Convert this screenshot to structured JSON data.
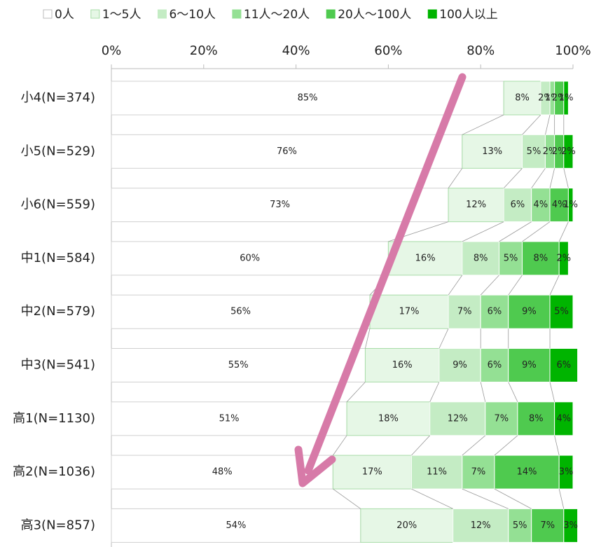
{
  "chart_data": {
    "type": "stacked-barh",
    "categories": [
      "小4(N=374)",
      "小5(N=529)",
      "小6(N=559)",
      "中1(N=584)",
      "中2(N=579)",
      "中3(N=541)",
      "高1(N=1130)",
      "高2(N=1036)",
      "高3(N=857)"
    ],
    "series": [
      {
        "name": "0人",
        "color": "#ffffff",
        "values": [
          85,
          76,
          73,
          60,
          56,
          55,
          51,
          48,
          54
        ],
        "value_labels": [
          "85%",
          "76%",
          "73%",
          "60%",
          "56%",
          "55%",
          "51%",
          "48%",
          "54%"
        ]
      },
      {
        "name": "1〜5人",
        "color": "#e6f7e6",
        "values": [
          8,
          13,
          12,
          16,
          17,
          16,
          18,
          17,
          20
        ],
        "value_labels": [
          "8%",
          "13%",
          "12%",
          "16%",
          "17%",
          "16%",
          "18%",
          "17%",
          "20%"
        ]
      },
      {
        "name": "6〜10人",
        "color": "#c4ecc4",
        "values": [
          2,
          5,
          6,
          8,
          7,
          9,
          12,
          11,
          12
        ],
        "value_labels": [
          "2%",
          "5%",
          "6%",
          "8%",
          "7%",
          "9%",
          "12%",
          "11%",
          "12%"
        ]
      },
      {
        "name": "11人〜20人",
        "color": "#94e094",
        "values": [
          1,
          2,
          4,
          5,
          6,
          6,
          7,
          7,
          5
        ],
        "value_labels": [
          "1%",
          "2%",
          "4%",
          "5%",
          "6%",
          "6%",
          "7%",
          "7%",
          "5%"
        ]
      },
      {
        "name": "20人〜100人",
        "color": "#4fca4f",
        "values": [
          2,
          2,
          4,
          8,
          9,
          9,
          8,
          14,
          7
        ],
        "value_labels": [
          "2%",
          "2%",
          "4%",
          "8%",
          "9%",
          "9%",
          "8%",
          "14%",
          "7%"
        ]
      },
      {
        "name": "100人以上",
        "color": "#00b400",
        "values": [
          1,
          2,
          1,
          2,
          5,
          6,
          4,
          3,
          3
        ],
        "value_labels": [
          "1%",
          "2%",
          "1%",
          "2%",
          "5%",
          "6%",
          "4%",
          "3%",
          "3%"
        ]
      }
    ],
    "xlim": [
      0,
      100
    ],
    "xticks": [
      {
        "value": 0,
        "label": "0%"
      },
      {
        "value": 20,
        "label": "20%"
      },
      {
        "value": 40,
        "label": "40%"
      },
      {
        "value": 60,
        "label": "60%"
      },
      {
        "value": 80,
        "label": "80%"
      },
      {
        "value": 100,
        "label": "100%"
      }
    ],
    "legend": "top"
  }
}
